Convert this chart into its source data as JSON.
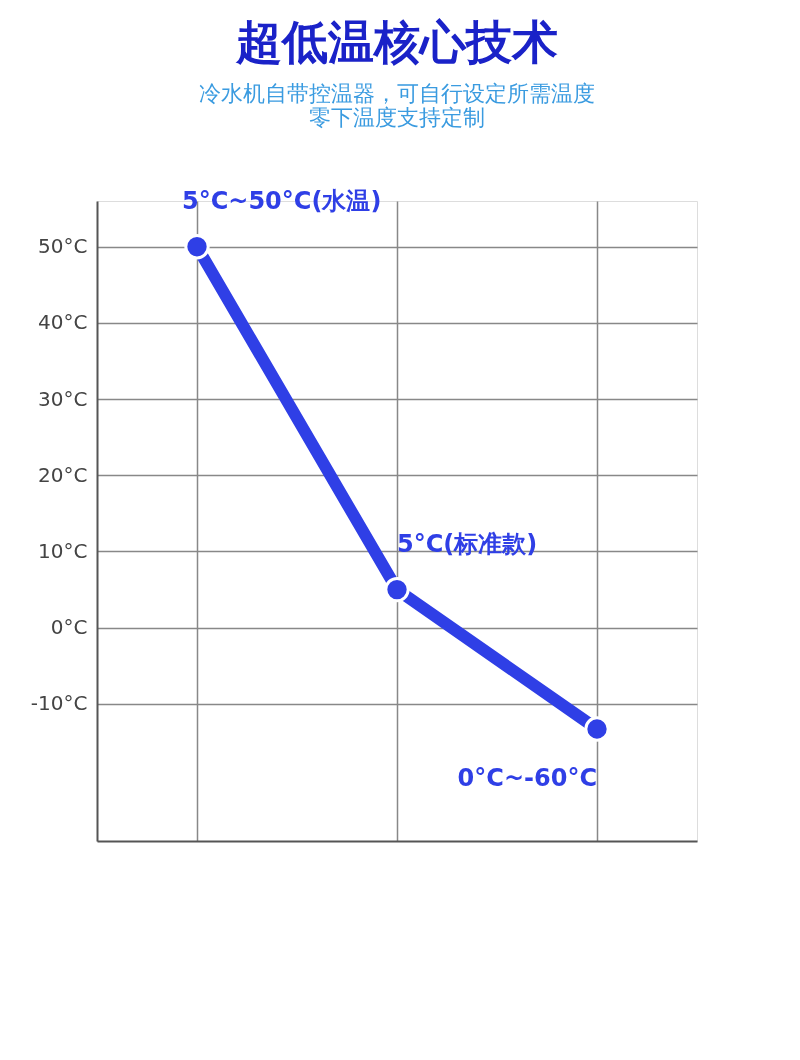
{
  "chart_data": {
    "type": "line",
    "title": "超低温核心技术",
    "subtitle": [
      "冷水机自带控温器，可自行设定所需温度",
      "零下温度支持定制"
    ],
    "categories": [
      null,
      null,
      null
    ],
    "series": [
      {
        "color": "#2f3fe6",
        "values": [
          50,
          5,
          -13.3
        ]
      }
    ],
    "ylim": [
      -28,
      56
    ],
    "yticks": [
      {
        "value": -10,
        "label": "-10°C"
      },
      {
        "value": 0,
        "label": "0°C"
      },
      {
        "value": 10,
        "label": "10°C"
      },
      {
        "value": 20,
        "label": "20°C"
      },
      {
        "value": 30,
        "label": "30°C"
      },
      {
        "value": 40,
        "label": "40°C"
      },
      {
        "value": 50,
        "label": "50°C"
      }
    ],
    "tick_labels": "y",
    "grid": true,
    "marker": "circle",
    "line_style": "solid",
    "annotations": [
      "5°C~50°C(水温)",
      "5°C(标准款)",
      "0°C~-60°C"
    ]
  }
}
